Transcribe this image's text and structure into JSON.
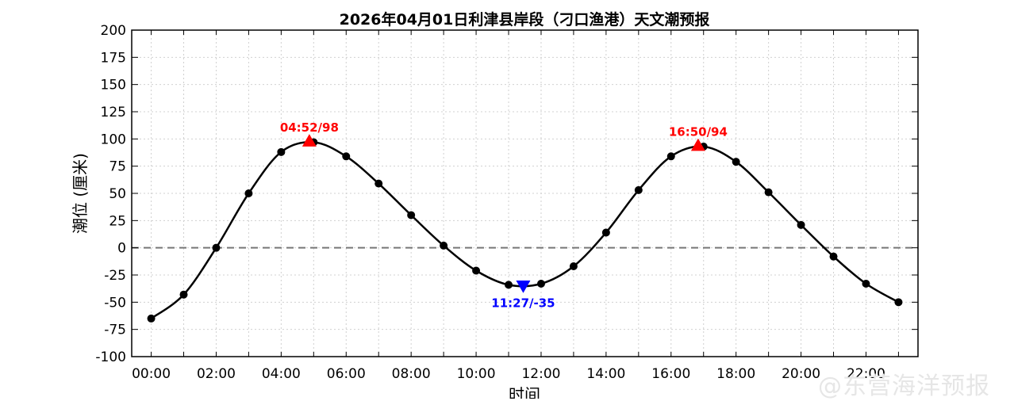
{
  "chart_data": {
    "type": "line",
    "title": "2026年04月01日利津县岸段（刁口渔港）天文潮预报",
    "xlabel": "时间",
    "ylabel": "潮位 (厘米)",
    "xlim": [
      -0.6,
      23.6
    ],
    "ylim": [
      -100,
      200
    ],
    "grid": true,
    "x_ticks": [
      "00:00",
      "02:00",
      "04:00",
      "06:00",
      "08:00",
      "10:00",
      "12:00",
      "14:00",
      "16:00",
      "18:00",
      "20:00",
      "22:00"
    ],
    "y_ticks": [
      -100,
      -75,
      -50,
      -25,
      0,
      25,
      50,
      75,
      100,
      125,
      150,
      175,
      200
    ],
    "series": [
      {
        "x": [
          0,
          1,
          2,
          3,
          4,
          5,
          6,
          7,
          8,
          9,
          10,
          11,
          12,
          13,
          14,
          15,
          16,
          17,
          18,
          19,
          20,
          21,
          22,
          23
        ],
        "values": [
          -65,
          -43,
          0,
          50,
          88,
          97,
          84,
          59,
          30,
          2,
          -21,
          -34,
          -33,
          -17,
          14,
          53,
          84,
          93,
          79,
          51,
          21,
          -8,
          -33,
          -50
        ]
      }
    ],
    "reference_line": 0,
    "extremes": [
      {
        "kind": "high",
        "x": 4.867,
        "y": 98,
        "label": "04:52/98",
        "color": "#ff0000"
      },
      {
        "kind": "low",
        "x": 11.45,
        "y": -35,
        "label": "11:27/-35",
        "color": "#0000ff"
      },
      {
        "kind": "high",
        "x": 16.833,
        "y": 94,
        "label": "16:50/94",
        "color": "#ff0000"
      }
    ]
  },
  "watermark": "@东营海洋预报"
}
